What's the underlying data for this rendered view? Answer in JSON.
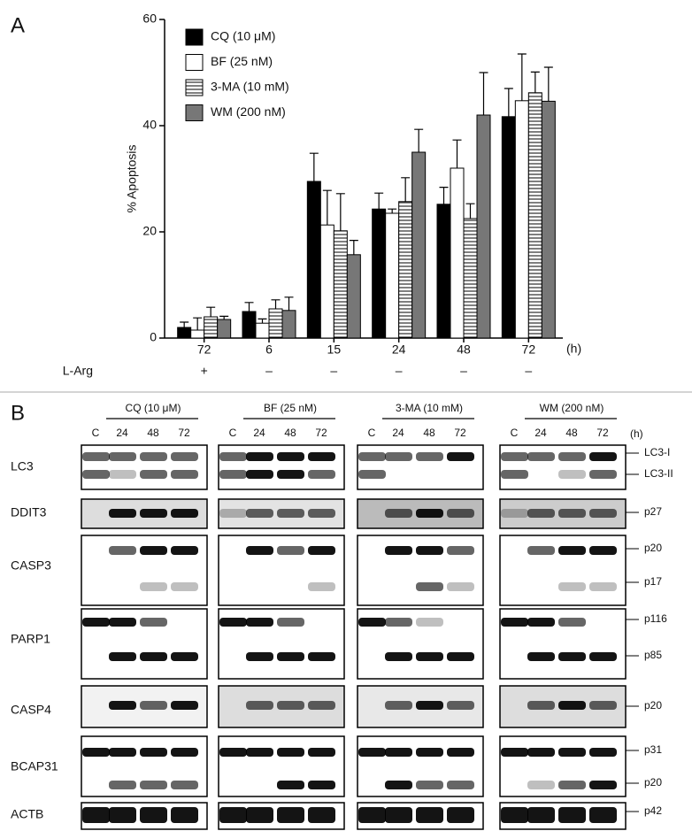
{
  "chart_data": {
    "type": "bar",
    "panel_label": "A",
    "y_label": "% Apoptosis",
    "categories": [
      "72",
      "6",
      "15",
      "24",
      "48",
      "72"
    ],
    "x_unit": "(h)",
    "row_label": "L-Arg",
    "row_values": [
      "+",
      "–",
      "–",
      "–",
      "–",
      "–"
    ],
    "ylim": [
      0,
      60
    ],
    "yticks": [
      0,
      20,
      40,
      60
    ],
    "grid": false,
    "legend": "top-left",
    "series": [
      {
        "name": "CQ (10 μM)",
        "color": "#000000",
        "values": [
          2,
          5,
          29.5,
          24.3,
          25.2,
          41.7
        ],
        "errors": [
          1,
          1.7,
          5.3,
          3,
          3.2,
          5.3
        ]
      },
      {
        "name": "BF (25 nM)",
        "color": "#ffffff",
        "values": [
          1.5,
          2.8,
          21.3,
          23.5,
          32,
          44.7
        ],
        "errors": [
          2.3,
          0.8,
          6.5,
          0.8,
          5.3,
          8.8
        ]
      },
      {
        "name": "3-MA (10 mM)",
        "color": "#ffffff",
        "hatch": "horizontal",
        "values": [
          4,
          5.5,
          20.2,
          25.7,
          22.5,
          46.2
        ],
        "errors": [
          1.8,
          1.7,
          7,
          4.5,
          2.8,
          3.9
        ]
      },
      {
        "name": "WM (200 nM)",
        "color": "#777777",
        "values": [
          3.5,
          5.2,
          15.7,
          35,
          42,
          44.6
        ],
        "errors": [
          0.6,
          2.5,
          2.7,
          4.3,
          8,
          6.4
        ]
      }
    ]
  },
  "panel_b": {
    "label": "B",
    "unit": "(h)",
    "groups": [
      {
        "title": "CQ (10 μM)",
        "lanes": [
          "C",
          "24",
          "48",
          "72"
        ]
      },
      {
        "title": "BF (25 nM)",
        "lanes": [
          "C",
          "24",
          "48",
          "72"
        ]
      },
      {
        "title": "3-MA (10 mM)",
        "lanes": [
          "C",
          "24",
          "48",
          "72"
        ]
      },
      {
        "title": "WM (200 nM)",
        "lanes": [
          "C",
          "24",
          "48",
          "72"
        ]
      }
    ],
    "rows": [
      {
        "name": "LC3",
        "markers": [
          "LC3-I",
          "LC3-II"
        ]
      },
      {
        "name": "DDIT3",
        "markers": [
          "p27"
        ]
      },
      {
        "name": "CASP3",
        "markers": [
          "p20",
          "p17"
        ]
      },
      {
        "name": "PARP1",
        "markers": [
          "p116",
          "p85"
        ]
      },
      {
        "name": "CASP4",
        "markers": [
          "p20"
        ]
      },
      {
        "name": "BCAP31",
        "markers": [
          "p31",
          "p20"
        ]
      },
      {
        "name": "ACTB",
        "markers": [
          "p42"
        ]
      }
    ]
  }
}
